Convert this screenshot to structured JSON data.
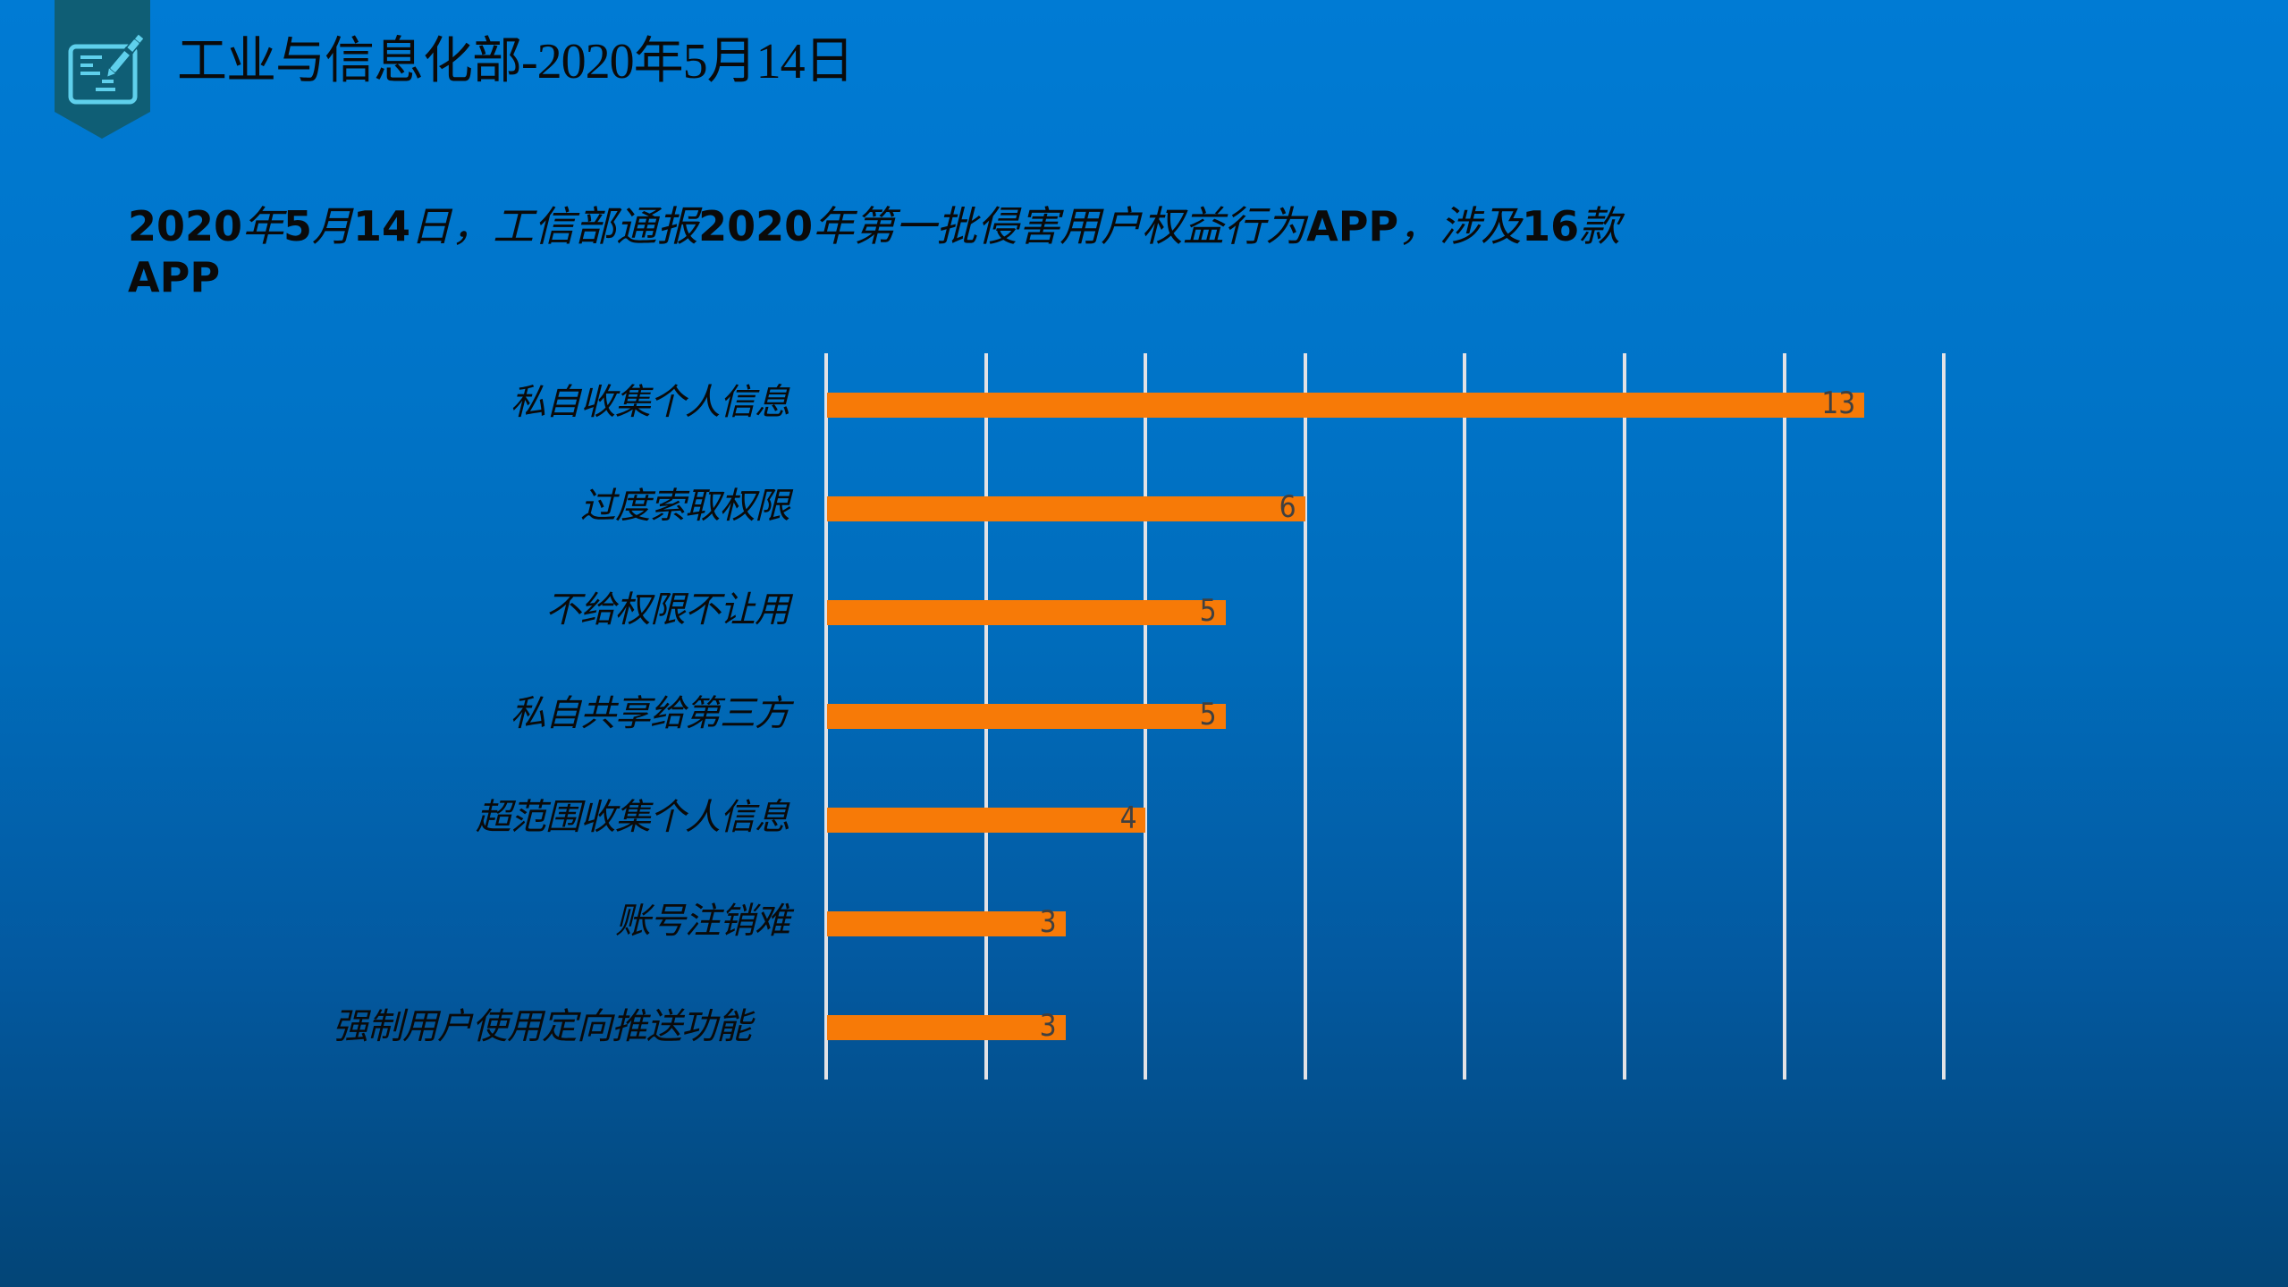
{
  "header": {
    "icon": "edit-document-pen-icon",
    "banner_color": "#0f5e75",
    "icon_color": "#5fd0ec",
    "title": "工业与信息化部-2020年5月14日"
  },
  "subtitle": {
    "parts": [
      {
        "text": "2020",
        "style": "bold"
      },
      {
        "text": "年",
        "style": "italic"
      },
      {
        "text": "5",
        "style": "bold"
      },
      {
        "text": "月",
        "style": "italic"
      },
      {
        "text": "14",
        "style": "bold"
      },
      {
        "text": "日，工信部通报",
        "style": "italic"
      },
      {
        "text": "2020",
        "style": "bold"
      },
      {
        "text": "年第一批侵害用户权益行为",
        "style": "italic"
      },
      {
        "text": "APP",
        "style": "bold"
      },
      {
        "text": "，涉及",
        "style": "italic"
      },
      {
        "text": "16",
        "style": "bold"
      },
      {
        "text": "款",
        "style": "italic"
      },
      {
        "text": " APP",
        "style": "bold"
      }
    ],
    "full_text": "2020年5月14日，工信部通报2020年第一批侵害用户权益行为APP，涉及16款APP"
  },
  "chart_data": {
    "type": "bar",
    "orientation": "horizontal",
    "title": "2020年5月14日，工信部通报2020年第一批侵害用户权益行为APP，涉及16款APP",
    "xlabel": "",
    "ylabel": "",
    "categories": [
      "私自收集个人信息",
      "过度索取权限",
      "不给权限不让用",
      "私自共享给第三方",
      "超范围收集个人信息",
      "账号注销难",
      "强制用户使用定向推送功能"
    ],
    "values": [
      13,
      6,
      5,
      5,
      4,
      3,
      3
    ],
    "data_labels": [
      "13",
      "6",
      "5",
      "5",
      "4",
      "3",
      "3"
    ],
    "xlim": [
      0,
      14
    ],
    "x_gridlines": [
      0,
      2,
      4,
      6,
      8,
      10,
      12,
      14
    ],
    "x_tick_labels_visible": false,
    "grid": true,
    "legend": null,
    "bar_color": "#f77a07",
    "gridline_color": "#e2e2e6",
    "label_color": "#404040"
  }
}
